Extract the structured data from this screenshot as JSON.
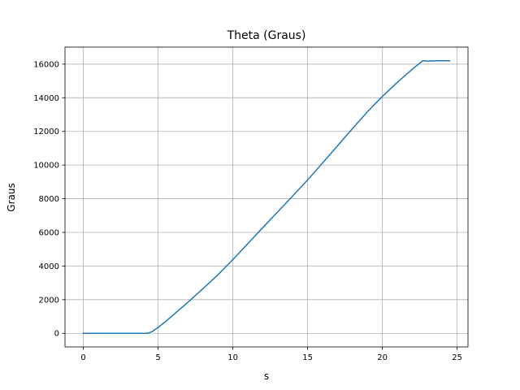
{
  "chart_data": {
    "type": "line",
    "title": "Theta (Graus)",
    "xlabel": "s",
    "ylabel": "Graus",
    "xlim": [
      -1.225,
      25.725
    ],
    "ylim": [
      -810,
      17010
    ],
    "xticks": [
      0,
      5,
      10,
      15,
      20,
      25
    ],
    "yticks": [
      0,
      2000,
      4000,
      6000,
      8000,
      10000,
      12000,
      14000,
      16000
    ],
    "grid": true,
    "legend": "none",
    "series": [
      {
        "color": "#1f77b4",
        "x": [
          0,
          1,
          2,
          3,
          4,
          4.3,
          4.6,
          5,
          5.5,
          6,
          7,
          8,
          9,
          10,
          11,
          12,
          13,
          14,
          15,
          16,
          17,
          18,
          19,
          20,
          21,
          22,
          22.7,
          23,
          23.3,
          23.6,
          24,
          24.5
        ],
        "y": [
          0,
          0,
          0,
          0,
          0,
          0,
          100,
          350,
          700,
          1080,
          1850,
          2650,
          3480,
          4380,
          5330,
          6280,
          7220,
          8160,
          9120,
          10120,
          11140,
          12170,
          13170,
          14080,
          14920,
          15700,
          16200,
          16180,
          16190,
          16200,
          16200,
          16200
        ]
      }
    ]
  }
}
